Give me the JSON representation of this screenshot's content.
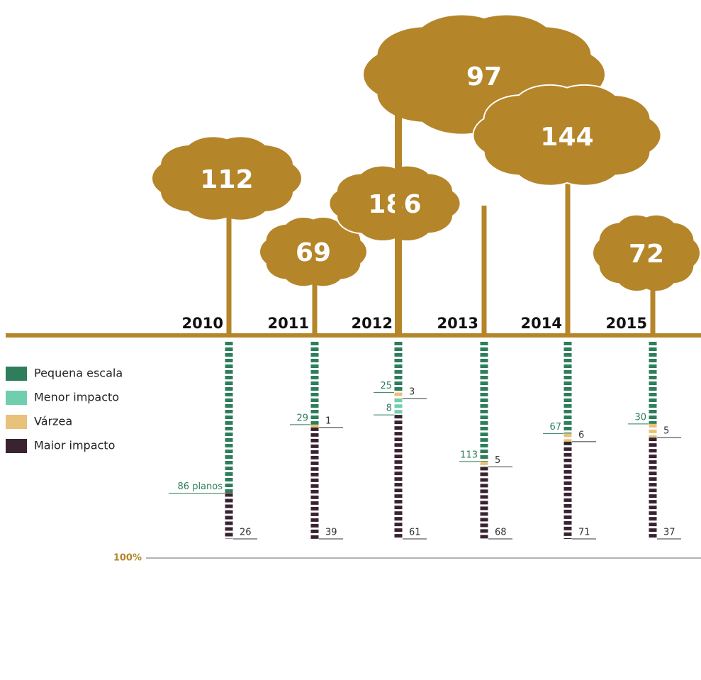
{
  "chart_data": {
    "type": "stacked-column",
    "categories": [
      "2010",
      "2011",
      "2012",
      "2013",
      "2014",
      "2015"
    ],
    "totals": [
      112,
      69,
      97,
      186,
      144,
      72
    ],
    "series": [
      {
        "name": "Pequena escala",
        "color": "#2e7d5b",
        "values": [
          86,
          29,
          25,
          113,
          67,
          30
        ],
        "value_labels": [
          "86 planos",
          "29",
          "25",
          "113",
          "67",
          "30"
        ]
      },
      {
        "name": "Menor impacto",
        "color": "#6fcfad",
        "values": [
          0,
          0,
          8,
          0,
          0,
          0
        ]
      },
      {
        "name": "Várzea",
        "color": "#e8c27a",
        "values": [
          0,
          1,
          3,
          5,
          6,
          5
        ]
      },
      {
        "name": "Maior impacto",
        "color": "#3a2330",
        "values": [
          26,
          39,
          61,
          68,
          71,
          37
        ]
      }
    ],
    "scale_label": "100%",
    "crown_color": "#b5852a"
  }
}
